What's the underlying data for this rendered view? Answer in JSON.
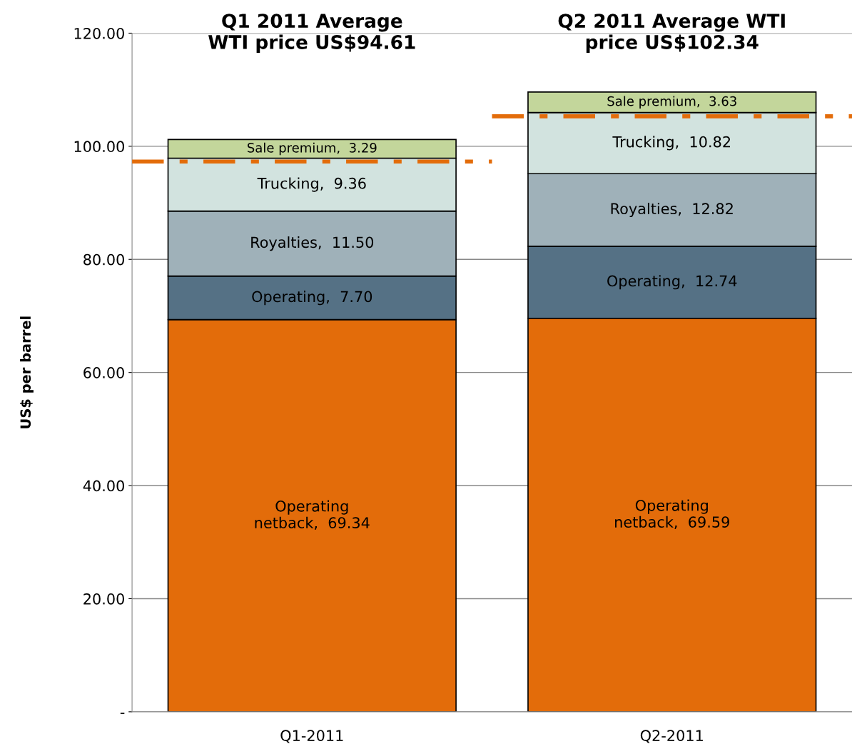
{
  "chart_data": {
    "type": "bar",
    "stacked": true,
    "categories": [
      "Q1-2011",
      "Q2-2011"
    ],
    "ylabel": "US$ per barrel",
    "annotations": [
      "Q1 2011 Average\nWTI price US$94.61",
      "Q2 2011 Average WTI\nprice US$102.34"
    ],
    "series": [
      {
        "color": "#e36c0a",
        "values": [
          69.34,
          69.59
        ],
        "value_labels": [
          "Operating\nnetback,  69.34",
          "Operating\nnetback,  69.59"
        ]
      },
      {
        "color": "#557185",
        "values": [
          7.7,
          12.74
        ],
        "value_labels": [
          "Operating,  7.70",
          "Operating,  12.74"
        ]
      },
      {
        "color": "#9fb1b9",
        "values": [
          11.5,
          12.82
        ],
        "value_labels": [
          "Royalties,  11.50",
          "Royalties,  12.82"
        ]
      },
      {
        "color": "#d2e3df",
        "values": [
          9.36,
          10.82
        ],
        "value_labels": [
          "Trucking,  9.36",
          "Trucking,  10.82"
        ]
      },
      {
        "color": "#c3d69b",
        "values": [
          3.29,
          3.63
        ],
        "value_labels": [
          "Sale premium,  3.29",
          "Sale premium,  3.63"
        ]
      }
    ],
    "ref_lines": [
      {
        "axis": "y",
        "value": 97.3,
        "color": "#e36c0a",
        "line_style": "dashdot"
      },
      {
        "axis": "y",
        "value": 105.3,
        "color": "#e36c0a",
        "line_style": "dashdot"
      }
    ],
    "ylim": [
      0,
      120
    ],
    "yticks": [
      {
        "value": 0,
        "label": "-"
      },
      {
        "value": 20,
        "label": "20.00"
      },
      {
        "value": 40,
        "label": "40.00"
      },
      {
        "value": 60,
        "label": "60.00"
      },
      {
        "value": 80,
        "label": "80.00"
      },
      {
        "value": 100,
        "label": "100.00"
      },
      {
        "value": 120,
        "label": "120.00"
      }
    ],
    "grid": "y",
    "legend": false
  }
}
